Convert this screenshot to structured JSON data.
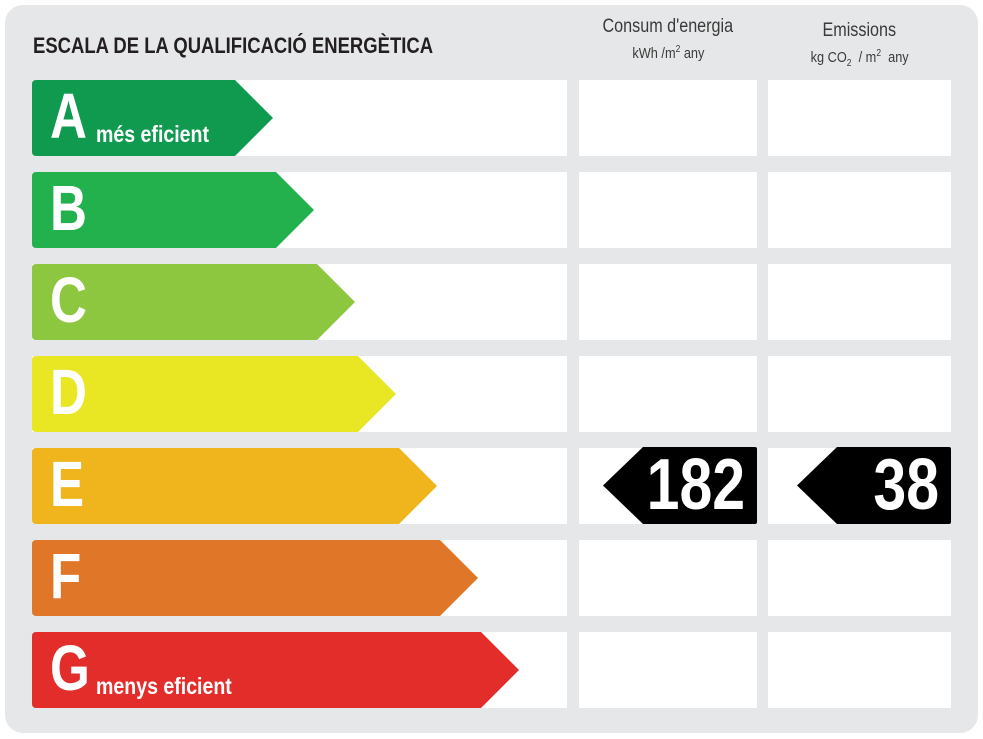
{
  "title": "ESCALA DE LA QUALIFICACIÓ ENERGÈTICA",
  "columns": {
    "consumption": {
      "label": "Consum d'energia",
      "unit_prefix": "kWh /m",
      "unit_sup": "2",
      "unit_suffix": " any"
    },
    "emissions": {
      "label": "Emissions",
      "unit_prefix": "kg CO",
      "unit_sub": "2",
      "unit_mid": "  / m",
      "unit_sup": "2",
      "unit_suffix": "  any"
    }
  },
  "ratings": [
    {
      "letter": "A",
      "description": "més eficient",
      "color": "#0f9a4f"
    },
    {
      "letter": "B",
      "description": "",
      "color": "#22b14c"
    },
    {
      "letter": "C",
      "description": "",
      "color": "#8dc63f"
    },
    {
      "letter": "D",
      "description": "",
      "color": "#e9e623"
    },
    {
      "letter": "E",
      "description": "",
      "color": "#f0b51d"
    },
    {
      "letter": "F",
      "description": "",
      "color": "#e07627"
    },
    {
      "letter": "G",
      "description": "menys eficient",
      "color": "#e32d2a"
    }
  ],
  "current_rating": "E",
  "consumption_value": "182",
  "emissions_value": "38"
}
